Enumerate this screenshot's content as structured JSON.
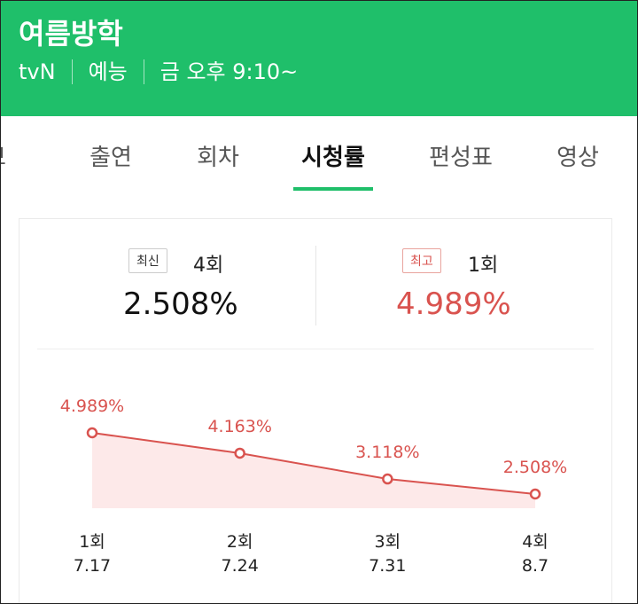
{
  "header": {
    "title": "여름방학",
    "meta": [
      "tvN",
      "예능",
      "금 오후 9:10~"
    ]
  },
  "tabs": [
    "정보",
    "출연",
    "회차",
    "시청률",
    "편성표",
    "영상"
  ],
  "summary": {
    "latest": {
      "badge": "최신",
      "episode": "4회",
      "rating": "2.508%"
    },
    "best": {
      "badge": "최고",
      "episode": "1회",
      "rating": "4.989%"
    }
  },
  "chart_data": {
    "type": "line",
    "categories": [
      "1회",
      "2회",
      "3회",
      "4회"
    ],
    "dates": [
      "7.17",
      "7.24",
      "7.31",
      "8.7"
    ],
    "series": [
      {
        "color": "#d9534f",
        "values": [
          4.989,
          4.163,
          3.118,
          2.508
        ],
        "value_labels": [
          "4.989%",
          "4.163%",
          "3.118%",
          "2.508%"
        ]
      }
    ]
  }
}
